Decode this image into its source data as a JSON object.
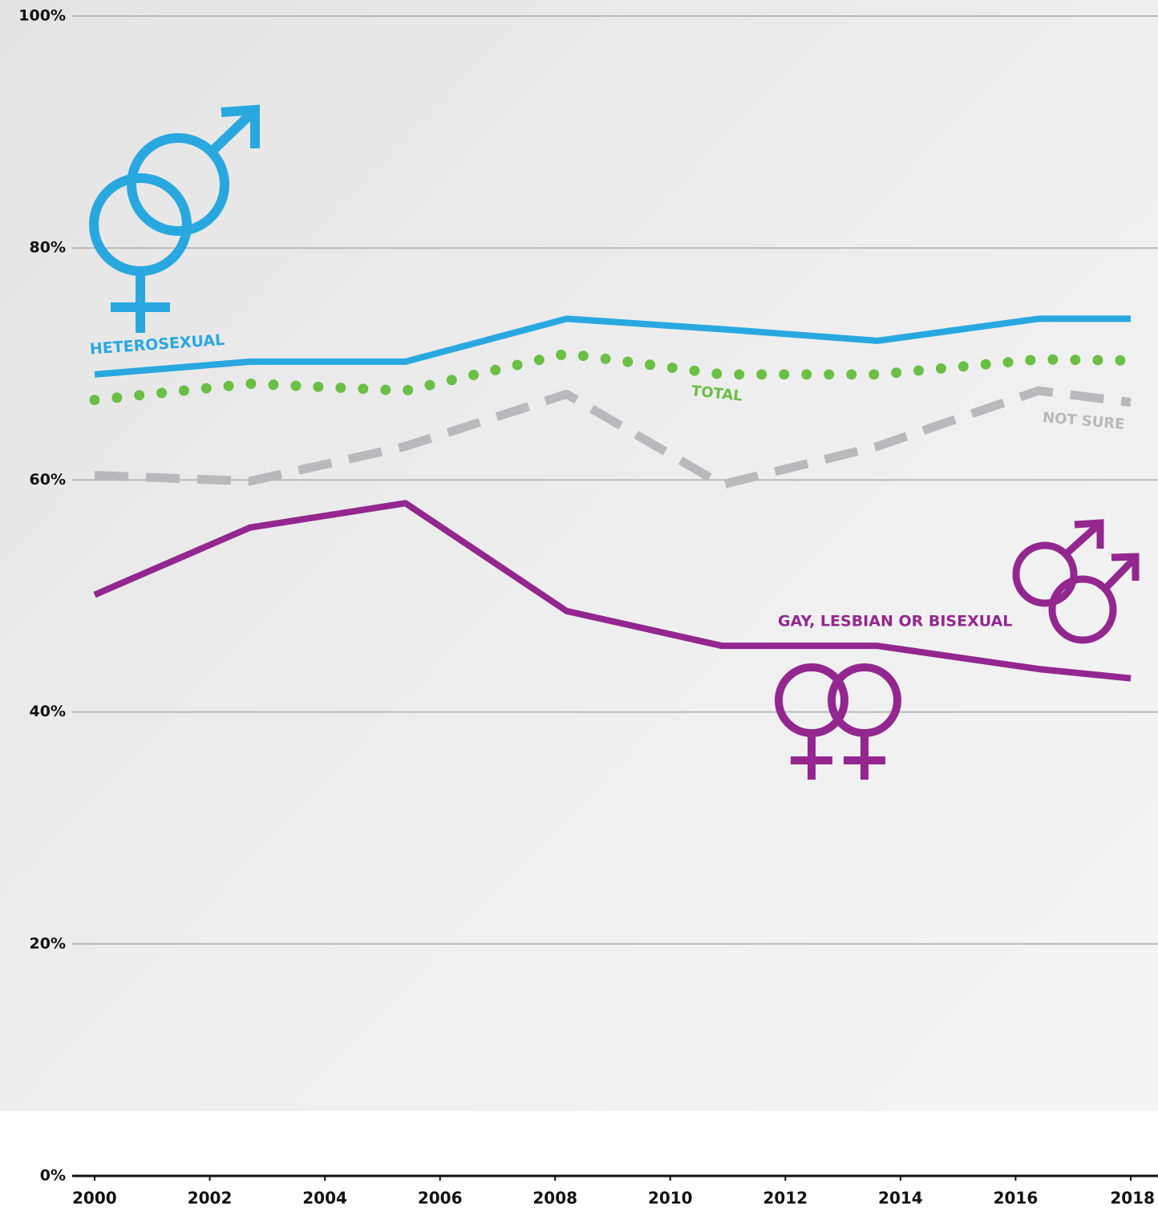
{
  "chart_data": {
    "type": "line",
    "x": [
      2000,
      2002.7,
      2005.4,
      2008.2,
      2010.9,
      2013.6,
      2016.4,
      2018
    ],
    "series": [
      {
        "name": "HETEROSEXUAL",
        "color": "#29a8e0",
        "style": "solid",
        "values": [
          69.1,
          70.2,
          70.2,
          73.9,
          73.0,
          72.0,
          73.9,
          73.9
        ]
      },
      {
        "name": "TOTAL",
        "color": "#6abf45",
        "style": "dotted",
        "values": [
          66.9,
          68.3,
          67.7,
          70.9,
          69.1,
          69.1,
          70.4,
          70.3
        ]
      },
      {
        "name": "NOT SURE",
        "color": "#b9b9bb",
        "style": "dashed",
        "values": [
          60.4,
          59.9,
          62.9,
          67.4,
          59.6,
          62.9,
          67.7,
          66.7
        ]
      },
      {
        "name": "GAY, LESBIAN OR BISEXUAL",
        "color": "#93278f",
        "style": "solid",
        "values": [
          50.1,
          55.9,
          58.0,
          48.7,
          45.7,
          45.7,
          43.7,
          42.9
        ]
      }
    ],
    "xlim": [
      2000,
      2018
    ],
    "xticks": [
      2000,
      2002,
      2004,
      2006,
      2008,
      2010,
      2012,
      2014,
      2016,
      2018
    ],
    "ylim": [
      0,
      100
    ],
    "yticks": [
      {
        "value": 0,
        "label": "0%"
      },
      {
        "value": 20,
        "label": "20%"
      },
      {
        "value": 40,
        "label": "40%"
      },
      {
        "value": 60,
        "label": "60%"
      },
      {
        "value": 80,
        "label": "80%"
      },
      {
        "value": 100,
        "label": "100%"
      }
    ],
    "grid": true
  }
}
